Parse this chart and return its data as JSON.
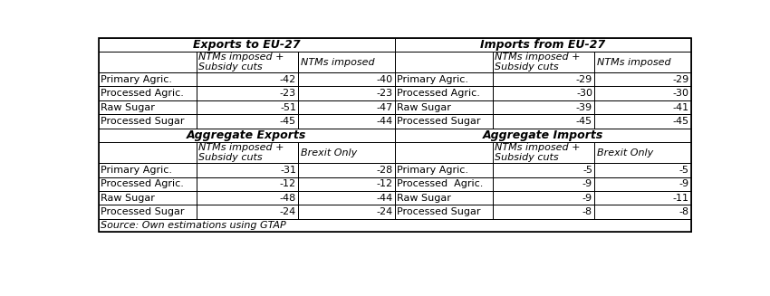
{
  "exports_eu27_header": "Exports to EU-27",
  "imports_eu27_header": "Imports from EU-27",
  "aggregate_exports_header": "Aggregate Exports",
  "aggregate_imports_header": "Aggregate Imports",
  "rows_top": [
    {
      "label": "Primary Agric.",
      "exp_ntm_sub": "-42",
      "exp_ntm": "-40",
      "imp_ntm_sub": "-29",
      "imp_ntm": "-29"
    },
    {
      "label": "Processed Agric.",
      "exp_ntm_sub": "-23",
      "exp_ntm": "-23",
      "imp_ntm_sub": "-30",
      "imp_ntm": "-30"
    },
    {
      "label": "Raw Sugar",
      "exp_ntm_sub": "-51",
      "exp_ntm": "-47",
      "imp_ntm_sub": "-39",
      "imp_ntm": "-41"
    },
    {
      "label": "Processed Sugar",
      "exp_ntm_sub": "-45",
      "exp_ntm": "-44",
      "imp_ntm_sub": "-45",
      "imp_ntm": "-45"
    }
  ],
  "rows_bottom_left": [
    {
      "label": "Primary Agric.",
      "val1": "-31",
      "val2": "-28"
    },
    {
      "label": "Processed Agric.",
      "val1": "-12",
      "val2": "-12"
    },
    {
      "label": "Raw Sugar",
      "val1": "-48",
      "val2": "-44"
    },
    {
      "label": "Processed Sugar",
      "val1": "-24",
      "val2": "-24"
    }
  ],
  "rows_bottom_right": [
    {
      "label": "Primary Agric.",
      "val1": "-5",
      "val2": "-5"
    },
    {
      "label": "Processed  Agric.",
      "val1": "-9",
      "val2": "-9"
    },
    {
      "label": "Raw Sugar",
      "val1": "-9",
      "val2": "-11"
    },
    {
      "label": "Processed Sugar",
      "val1": "-8",
      "val2": "-8"
    }
  ],
  "source_text": "Source: Own estimations using GTAP",
  "bg_color": "#ffffff",
  "border_color": "#000000",
  "font_size": 8.0,
  "header_font_size": 8.0,
  "title_font_size": 9.0
}
